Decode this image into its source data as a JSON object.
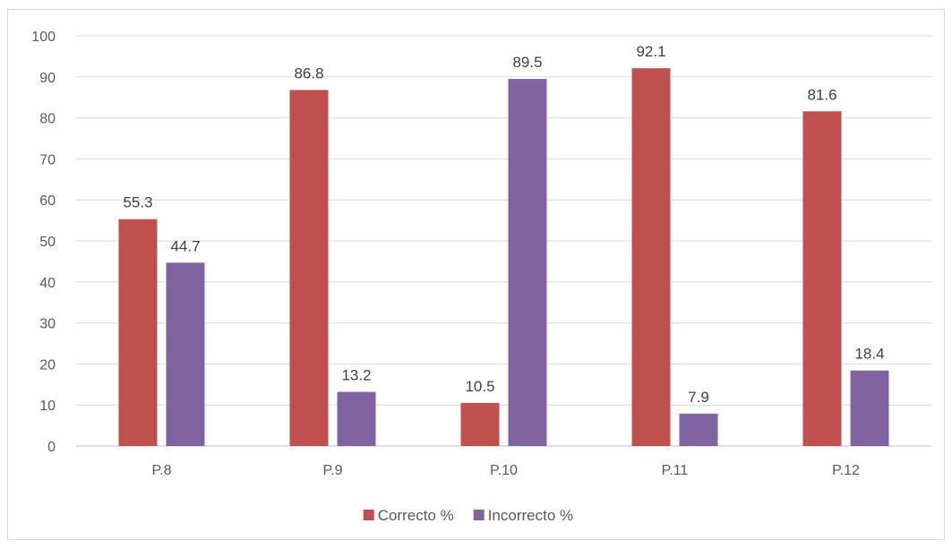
{
  "chart_data": {
    "type": "bar",
    "categories": [
      "P.8",
      "P.9",
      "P.10",
      "P.11",
      "P.12"
    ],
    "series": [
      {
        "name": "Correcto %",
        "values": [
          55.3,
          86.8,
          10.5,
          92.1,
          81.6
        ],
        "color": "#c0504d"
      },
      {
        "name": "Incorrecto %",
        "values": [
          44.7,
          13.2,
          89.5,
          7.9,
          18.4
        ],
        "color": "#8064a2"
      }
    ],
    "ylim": [
      0,
      100
    ],
    "yticks": [
      0,
      10,
      20,
      30,
      40,
      50,
      60,
      70,
      80,
      90,
      100
    ],
    "grid": true,
    "legend_position": "bottom",
    "title": "",
    "xlabel": "",
    "ylabel": ""
  }
}
